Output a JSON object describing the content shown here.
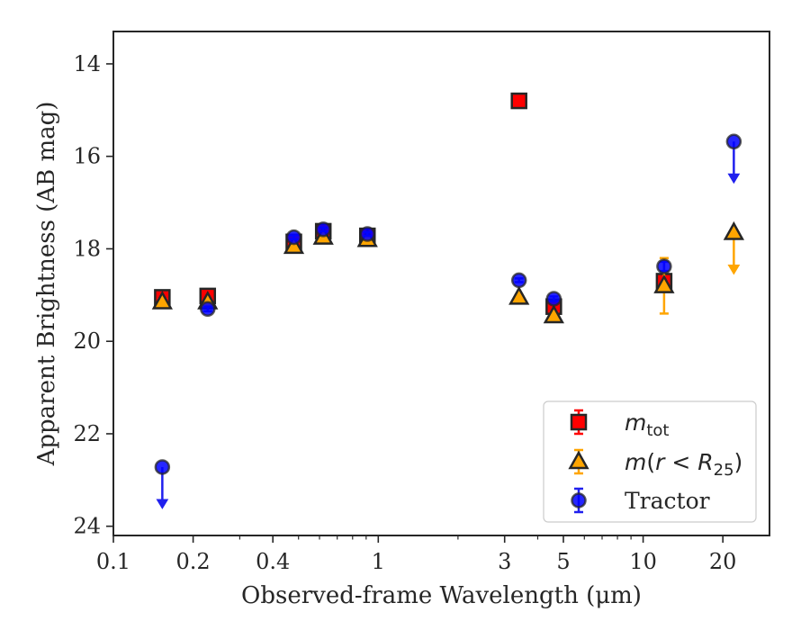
{
  "chart_data": {
    "type": "scatter",
    "xlabel": "Observed-frame Wavelength (μm)",
    "ylabel": "Apparent Brightness (AB mag)",
    "x_scale": "log",
    "xlim": [
      0.1,
      30
    ],
    "ylim": [
      24.2,
      13.3
    ],
    "y_inverted": true,
    "x_ticks": [
      0.1,
      0.2,
      0.4,
      1,
      3,
      5,
      10,
      20
    ],
    "x_tick_labels": [
      "0.1",
      "0.2",
      "0.4",
      "1",
      "3",
      "5",
      "10",
      "20"
    ],
    "y_ticks": [
      14,
      16,
      18,
      20,
      22,
      24
    ],
    "y_tick_labels": [
      "14",
      "16",
      "18",
      "20",
      "22",
      "24"
    ],
    "legend": {
      "position": "lower-right"
    },
    "series": [
      {
        "legend_label": "m_tot",
        "marker": "square",
        "face_color": "#ff0000",
        "edge_color": "#262626",
        "error_color": "#ff0000",
        "points": [
          {
            "x": 0.153,
            "y": 19.05,
            "yerr": 0.08
          },
          {
            "x": 0.227,
            "y": 19.02,
            "yerr": 0.06
          },
          {
            "x": 0.48,
            "y": 17.85,
            "yerr": 0.04
          },
          {
            "x": 0.62,
            "y": 17.62,
            "yerr": 0.04
          },
          {
            "x": 0.91,
            "y": 17.72,
            "yerr": 0.04
          },
          {
            "x": 3.4,
            "y": 14.8,
            "yerr": 0.02
          },
          {
            "x": 4.6,
            "y": 19.25,
            "yerr": 0.05
          },
          {
            "x": 12.0,
            "y": 18.7,
            "yerr": 0.15
          }
        ]
      },
      {
        "legend_label": "m(r < R_25)",
        "marker": "triangle",
        "face_color": "#ffa500",
        "edge_color": "#262626",
        "error_color": "#ffa500",
        "points": [
          {
            "x": 0.153,
            "y": 19.15,
            "yerr": 0.06
          },
          {
            "x": 0.227,
            "y": 19.15,
            "yerr": 0.05
          },
          {
            "x": 0.48,
            "y": 17.95,
            "yerr": 0.03
          },
          {
            "x": 0.62,
            "y": 17.75,
            "yerr": 0.03
          },
          {
            "x": 0.91,
            "y": 17.8,
            "yerr": 0.03
          },
          {
            "x": 3.4,
            "y": 19.05,
            "yerr": 0.05
          },
          {
            "x": 4.6,
            "y": 19.45,
            "yerr": 0.06
          },
          {
            "x": 12.0,
            "y": 18.8,
            "yerr": 0.6
          },
          {
            "x": 22.0,
            "y": 17.65,
            "upper_limit": true
          }
        ]
      },
      {
        "legend_label": "Tractor",
        "marker": "circle",
        "face_color": "#0000ff",
        "edge_color": "#262626",
        "error_color": "#2020ee",
        "points": [
          {
            "x": 0.153,
            "y": 22.72,
            "upper_limit": true
          },
          {
            "x": 0.227,
            "y": 19.3,
            "yerr": 0.05
          },
          {
            "x": 0.48,
            "y": 17.75,
            "yerr": 0.04
          },
          {
            "x": 0.62,
            "y": 17.58,
            "yerr": 0.04
          },
          {
            "x": 0.91,
            "y": 17.68,
            "yerr": 0.04
          },
          {
            "x": 3.4,
            "y": 18.68,
            "yerr": 0.04
          },
          {
            "x": 4.6,
            "y": 19.08,
            "yerr": 0.05
          },
          {
            "x": 12.0,
            "y": 18.38,
            "yerr": 0.1
          },
          {
            "x": 22.0,
            "y": 15.68,
            "upper_limit": true
          }
        ]
      }
    ]
  }
}
